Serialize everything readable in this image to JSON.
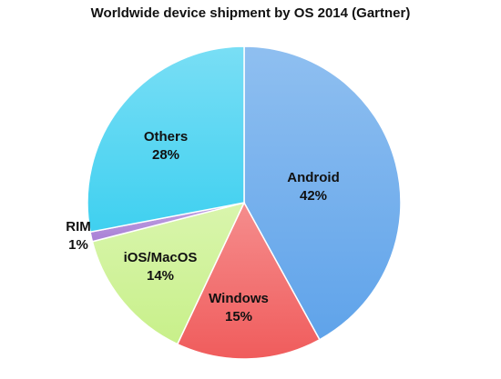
{
  "chart_data": {
    "type": "pie",
    "title": "Worldwide device shipment by OS 2014 (Gartner)",
    "slices": [
      {
        "label": "Android",
        "value": 42,
        "value_label": "42%",
        "color": "#5fa3ea"
      },
      {
        "label": "Windows",
        "value": 15,
        "value_label": "15%",
        "color": "#f05c5c"
      },
      {
        "label": "iOS/MacOS",
        "value": 14,
        "value_label": "14%",
        "color": "#c8f08a"
      },
      {
        "label": "RIM",
        "value": 1,
        "value_label": "1%",
        "color": "#a87fd6"
      },
      {
        "label": "Others",
        "value": 28,
        "value_label": "28%",
        "color": "#3fd0f0"
      }
    ],
    "start_angle_deg": 0,
    "direction": "clockwise",
    "legend": "none"
  }
}
